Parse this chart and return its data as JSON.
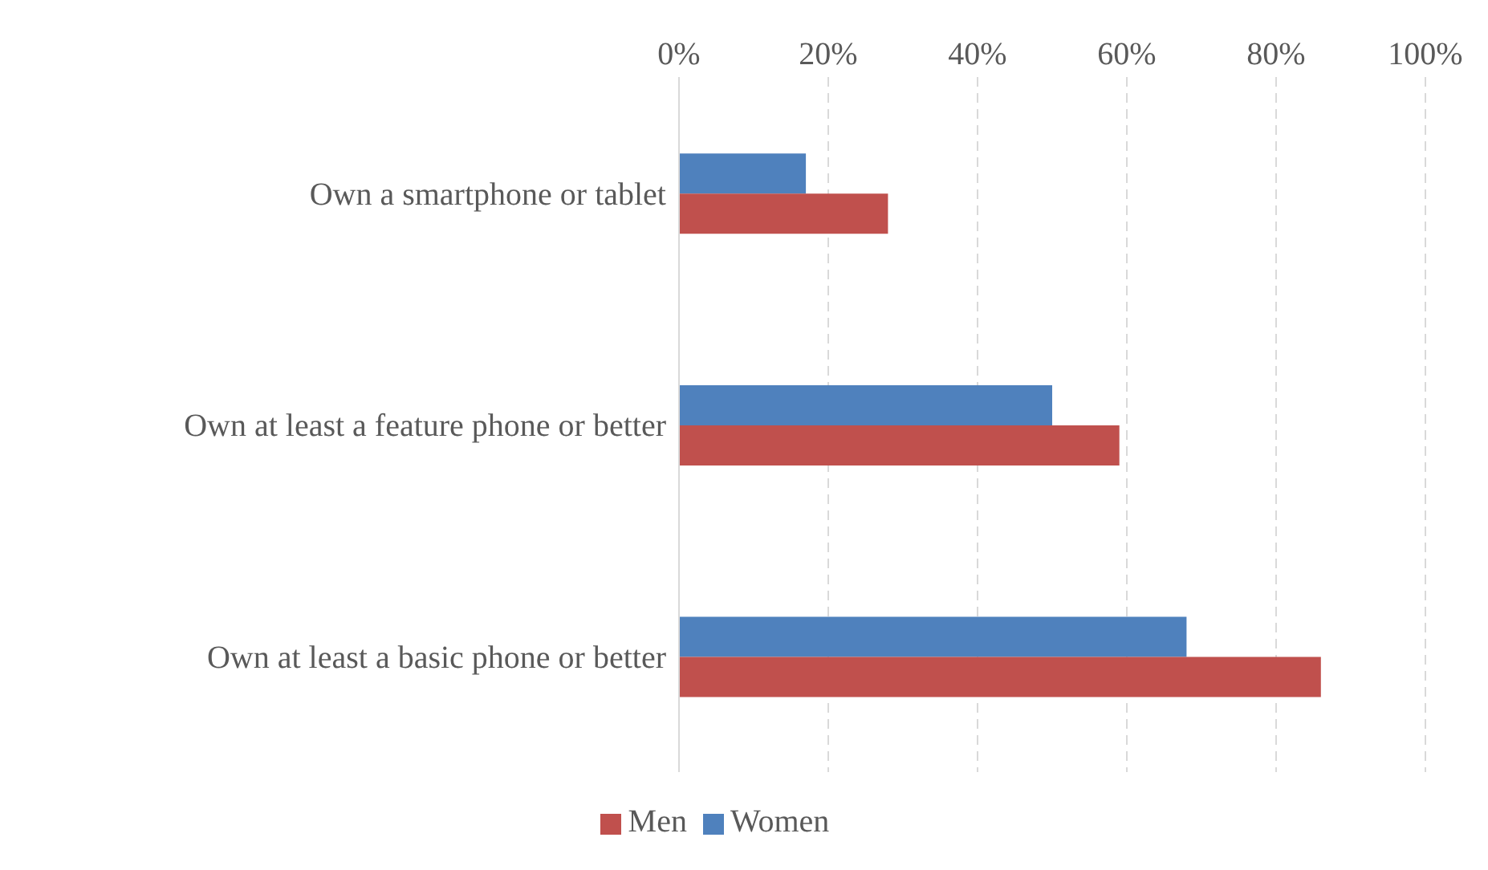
{
  "chart_data": {
    "type": "bar",
    "orientation": "horizontal",
    "categories": [
      "Own a smartphone or tablet",
      "Own at least a feature phone or better",
      "Own at least a basic phone or better"
    ],
    "series": [
      {
        "name": "Women",
        "color": "#4f81bd",
        "values": [
          17,
          50,
          68
        ]
      },
      {
        "name": "Men",
        "color": "#c0504d",
        "values": [
          28,
          59,
          86
        ]
      }
    ],
    "xlim": [
      0,
      100
    ],
    "xticks": [
      {
        "value": 0,
        "label": "0%"
      },
      {
        "value": 20,
        "label": "20%"
      },
      {
        "value": 40,
        "label": "40%"
      },
      {
        "value": 60,
        "label": "60%"
      },
      {
        "value": 80,
        "label": "80%"
      },
      {
        "value": 100,
        "label": "100%"
      }
    ],
    "grid": "x",
    "legend": "bottom"
  }
}
